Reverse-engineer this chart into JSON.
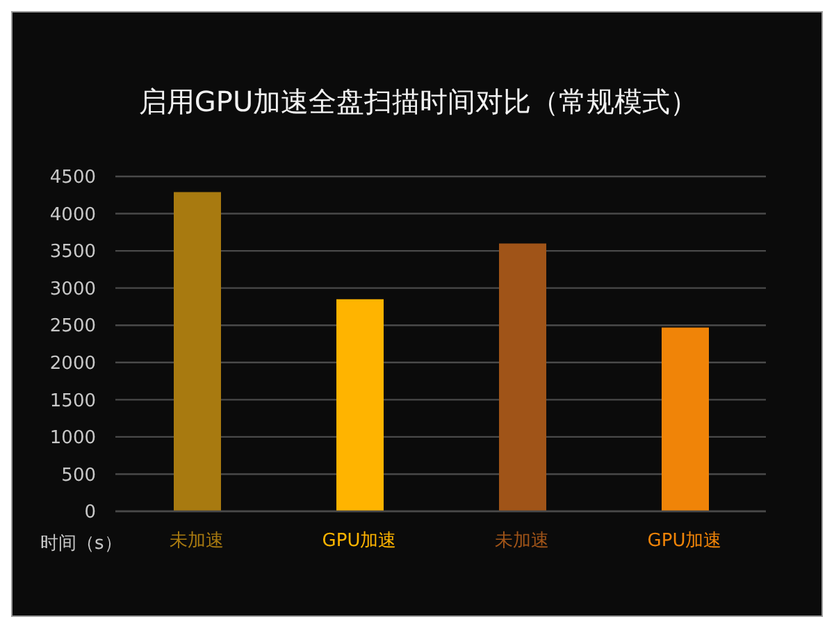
{
  "chart_data": {
    "type": "bar",
    "title": "启用GPU加速全盘扫描时间对比（常规模式）",
    "ylabel": "时间（s）",
    "categories": [
      "未加速",
      "GPU加速",
      "未加速",
      "GPU加速"
    ],
    "values": [
      4290,
      2850,
      3600,
      2470
    ],
    "colors": [
      "#a87a10",
      "#ffb400",
      "#a05418",
      "#f08408"
    ],
    "ylim": [
      0,
      4500
    ],
    "yticks": [
      0,
      500,
      1000,
      1500,
      2000,
      2500,
      3000,
      3500,
      4000,
      4500
    ],
    "grid": "y"
  }
}
